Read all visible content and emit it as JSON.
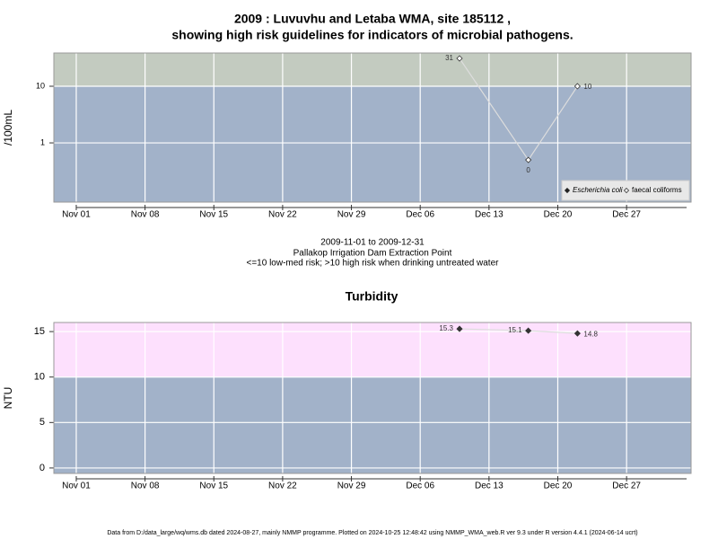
{
  "title": [
    "2009 : Luvuvhu and Letaba WMA, site 185112 ,",
    "showing high risk guidelines for indicators of microbial pathogens."
  ],
  "subtitle": [
    "2009-11-01 to 2009-12-31",
    "Pallakop Irrigation Dam Extraction Point",
    "<=10 low-med risk; >10 high risk when drinking untreated water"
  ],
  "footer": "Data from D:/data_large/wq/wms.db dated 2024-08-27, mainly NMMP programme. Plotted on 2024-10-25 12:48:42 using NMMP_WMA_web.R ver 9.3 under R version 4.4.1 (2024-06-14 ucrt)",
  "chart_data": [
    {
      "type": "line",
      "ylabel": "/100mL",
      "log_scale": true,
      "grid": true,
      "guideline": 10,
      "above_color": "#c3cbc0",
      "below_color": "#a2b2c9",
      "legend": "bottomright",
      "x": [
        "2009-12-10",
        "2009-12-17",
        "2009-12-22"
      ],
      "series": [
        {
          "name": "Escherichia coli",
          "color": "#222222",
          "marker": "filled",
          "values": [
            null,
            null,
            null
          ]
        },
        {
          "name": "faecal coliforms",
          "color": "#dddddd",
          "marker": "open",
          "values": [
            31,
            0.5,
            10
          ],
          "value_labels": [
            "31",
            "0",
            "10"
          ]
        }
      ],
      "xlim": [
        "2009-10-29T17:17Z",
        "2010-01-02T13:30Z"
      ],
      "xticks": [
        {
          "value": "2009-11-01",
          "label": "Nov 01"
        },
        {
          "value": "2009-11-08",
          "label": "Nov 08"
        },
        {
          "value": "2009-11-15",
          "label": "Nov 15"
        },
        {
          "value": "2009-11-22",
          "label": "Nov 22"
        },
        {
          "value": "2009-11-29",
          "label": "Nov 29"
        },
        {
          "value": "2009-12-06",
          "label": "Dec 06"
        },
        {
          "value": "2009-12-13",
          "label": "Dec 13"
        },
        {
          "value": "2009-12-20",
          "label": "Dec 20"
        },
        {
          "value": "2009-12-27",
          "label": "Dec 27"
        }
      ],
      "ylim": [
        0.09,
        38.6
      ],
      "yticks": [
        1,
        10
      ]
    },
    {
      "type": "line",
      "title": "Turbidity",
      "ylabel": "NTU",
      "log_scale": false,
      "grid": true,
      "guideline": 10,
      "above_color": "#fde0fd",
      "below_color": "#a2b2c9",
      "x": [
        "2009-12-10",
        "2009-12-17",
        "2009-12-22"
      ],
      "series": [
        {
          "color": "#333333",
          "line_color": "#dddddd",
          "marker": "filled",
          "values": [
            15.3,
            15.1,
            14.8
          ]
        }
      ],
      "xlim": [
        "2009-10-29T17:17Z",
        "2010-01-02T13:30Z"
      ],
      "xticks": [
        {
          "value": "2009-11-01",
          "label": "Nov 01"
        },
        {
          "value": "2009-11-08",
          "label": "Nov 08"
        },
        {
          "value": "2009-11-15",
          "label": "Nov 15"
        },
        {
          "value": "2009-11-22",
          "label": "Nov 22"
        },
        {
          "value": "2009-11-29",
          "label": "Nov 29"
        },
        {
          "value": "2009-12-06",
          "label": "Dec 06"
        },
        {
          "value": "2009-12-13",
          "label": "Dec 13"
        },
        {
          "value": "2009-12-20",
          "label": "Dec 20"
        },
        {
          "value": "2009-12-27",
          "label": "Dec 27"
        }
      ],
      "ylim": [
        -0.6,
        16
      ],
      "yticks": [
        0,
        5,
        10,
        15
      ]
    }
  ]
}
